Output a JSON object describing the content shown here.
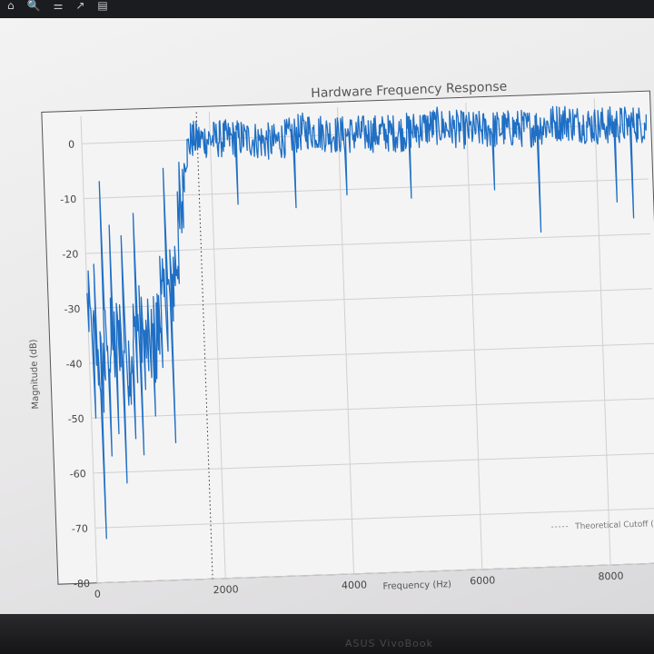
{
  "toolbar": {
    "buttons": [
      {
        "name": "home-icon",
        "glyph": "⌂"
      },
      {
        "name": "zoom-icon",
        "glyph": "🔍"
      },
      {
        "name": "configure-subplots-icon",
        "glyph": "⚌"
      },
      {
        "name": "edit-axis-icon",
        "glyph": "↗"
      },
      {
        "name": "save-icon",
        "glyph": "▤"
      }
    ]
  },
  "chart_data": {
    "type": "line",
    "title": "Hardware Frequency Response",
    "xlabel": "Frequency (Hz)",
    "ylabel": "Magnitude (dB)",
    "xlim": [
      0,
      8800
    ],
    "ylim": [
      -80,
      5
    ],
    "x_ticks": [
      0,
      2000,
      4000,
      6000,
      8000
    ],
    "x_tick_labels": [
      "0",
      "2000",
      "4000",
      "6000",
      "8000"
    ],
    "y_ticks": [
      0,
      -10,
      -20,
      -30,
      -40,
      -50,
      -60,
      -70,
      -80
    ],
    "y_tick_labels": [
      "0",
      "-10",
      "-20",
      "-30",
      "-40",
      "-50",
      "-60",
      "-70",
      "-80"
    ],
    "grid": true,
    "legend": {
      "position": "lower-right",
      "entries": [
        "Theoretical Cutoff (..."
      ]
    },
    "cutoff_hz": 1800,
    "series": [
      {
        "color": "#1f6fc5",
        "x": [
          0,
          100,
          200,
          300,
          400,
          500,
          600,
          700,
          800,
          900,
          1000,
          1100,
          1200,
          1300,
          1400,
          1500,
          1550,
          1600,
          1700,
          1800,
          2000,
          2500,
          3000,
          3500,
          4000,
          4500,
          5000,
          5500,
          6000,
          6500,
          7000,
          7500,
          8000,
          8500
        ],
        "y": [
          -30,
          -37,
          -42,
          -35,
          -38,
          -33,
          -40,
          -36,
          -34,
          -38,
          -37,
          -34,
          -30,
          -28,
          -22,
          -15,
          -8,
          -3,
          0,
          0,
          0,
          0,
          -1,
          1,
          0,
          0,
          0,
          1,
          0,
          0,
          0,
          1,
          0,
          0
        ]
      }
    ],
    "dips": [
      {
        "x": 70,
        "y": -50
      },
      {
        "x": 170,
        "y": -72
      },
      {
        "x": 300,
        "y": -57
      },
      {
        "x": 420,
        "y": -53
      },
      {
        "x": 520,
        "y": -62
      },
      {
        "x": 680,
        "y": -54
      },
      {
        "x": 800,
        "y": -57
      },
      {
        "x": 1000,
        "y": -50
      },
      {
        "x": 1300,
        "y": -55
      },
      {
        "x": 2400,
        "y": -12
      },
      {
        "x": 3300,
        "y": -13
      },
      {
        "x": 4100,
        "y": -11
      },
      {
        "x": 5100,
        "y": -12
      },
      {
        "x": 6400,
        "y": -11
      },
      {
        "x": 7100,
        "y": -19
      },
      {
        "x": 8300,
        "y": -14
      },
      {
        "x": 8550,
        "y": -17
      }
    ],
    "peaks": [
      {
        "x": 120,
        "y": -22
      },
      {
        "x": 250,
        "y": -7
      },
      {
        "x": 380,
        "y": -15
      },
      {
        "x": 560,
        "y": -17
      },
      {
        "x": 760,
        "y": -13
      },
      {
        "x": 1150,
        "y": -21
      },
      {
        "x": 1250,
        "y": -5
      },
      {
        "x": 1500,
        "y": -4
      }
    ]
  },
  "bottom_label": "ASUS VivoBook"
}
